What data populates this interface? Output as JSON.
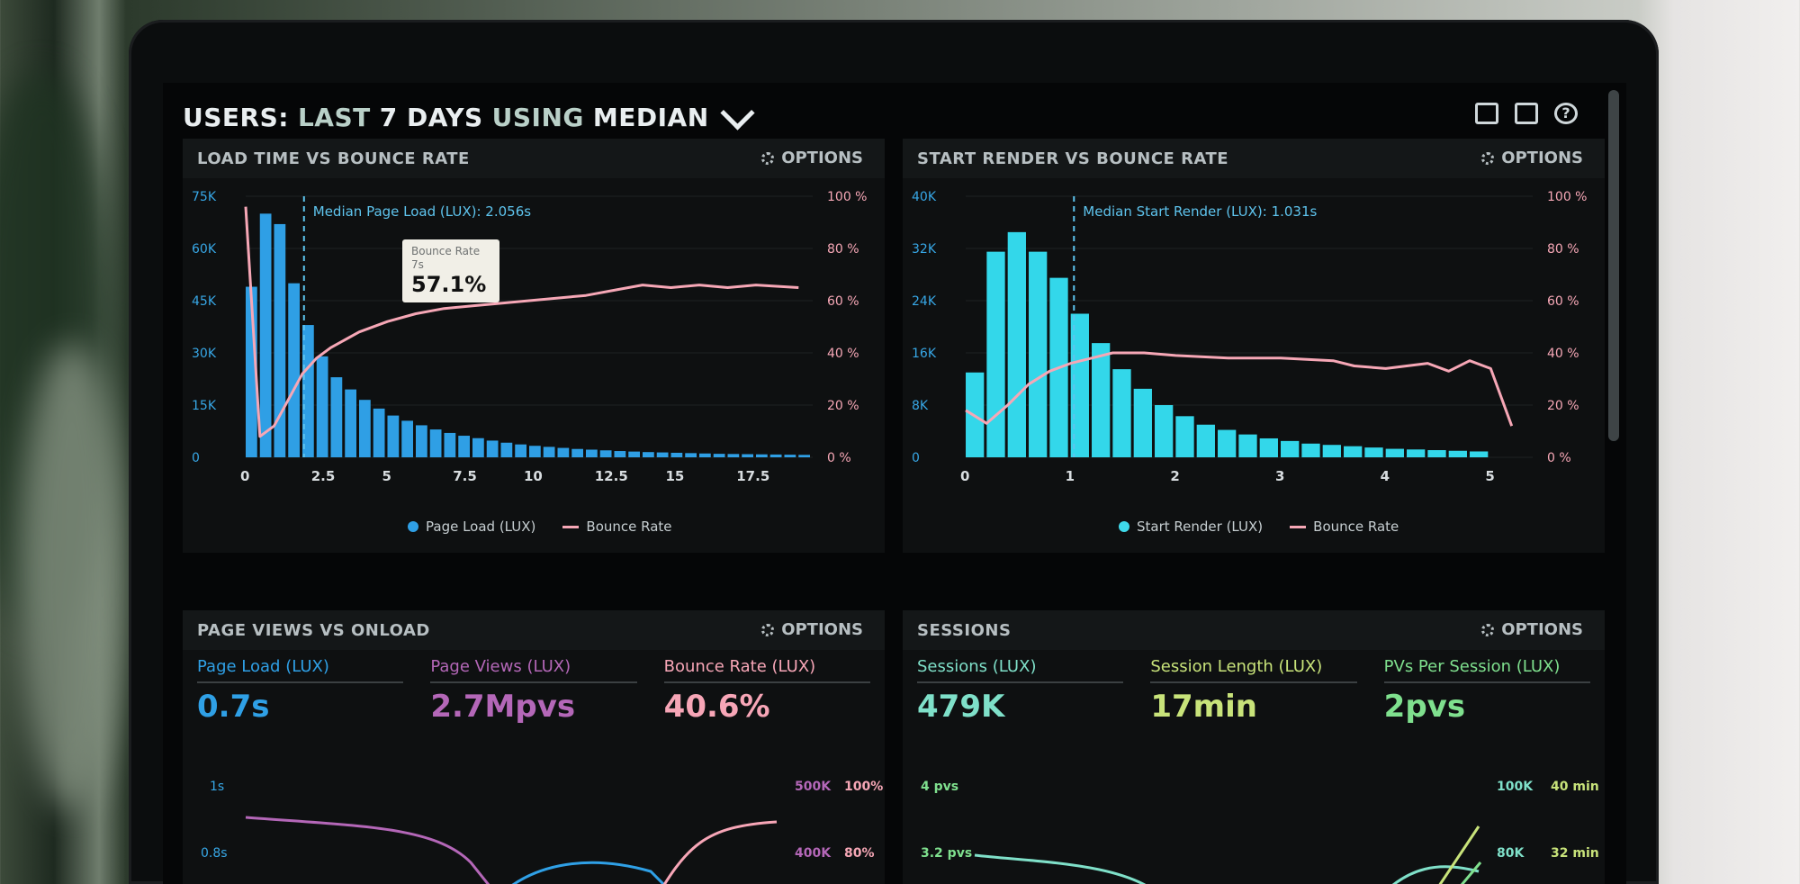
{
  "header": {
    "title_prefix": "USERS:",
    "title_range": "LAST",
    "title_days": "7 DAYS",
    "title_using": "USING",
    "title_stat": "MEDIAN"
  },
  "top_icons": [
    "monitor-icon",
    "share-icon",
    "help-icon"
  ],
  "options_label": "OPTIONS",
  "panels": {
    "load_time": {
      "title": "LOAD TIME VS BOUNCE RATE",
      "median_label": "Median Page Load (LUX): 2.056s",
      "tooltip": {
        "label": "Bounce Rate",
        "sub": "7s",
        "value": "57.1%"
      },
      "legend": [
        "Page Load (LUX)",
        "Bounce Rate"
      ],
      "y_left": [
        "75K",
        "60K",
        "45K",
        "30K",
        "15K",
        "0"
      ],
      "y_right": [
        "100 %",
        "80 %",
        "60 %",
        "40 %",
        "20 %",
        "0 %"
      ],
      "x_ticks": [
        "0",
        "2.5",
        "5",
        "7.5",
        "10",
        "12.5",
        "15",
        "17.5"
      ]
    },
    "start_render": {
      "title": "START RENDER VS BOUNCE RATE",
      "median_label": "Median Start Render (LUX): 1.031s",
      "legend": [
        "Start Render (LUX)",
        "Bounce Rate"
      ],
      "y_left": [
        "40K",
        "32K",
        "24K",
        "16K",
        "8K",
        "0"
      ],
      "y_right": [
        "100 %",
        "80 %",
        "60 %",
        "40 %",
        "20 %",
        "0 %"
      ],
      "x_ticks": [
        "0",
        "1",
        "2",
        "3",
        "4",
        "5"
      ]
    },
    "page_views": {
      "title": "PAGE VIEWS VS ONLOAD",
      "kpis": [
        {
          "label": "Page Load (LUX)",
          "value": "0.7s",
          "color": "#2fa0e6"
        },
        {
          "label": "Page Views (LUX)",
          "value": "2.7Mpvs",
          "color": "#b467b8"
        },
        {
          "label": "Bounce Rate (LUX)",
          "value": "40.6%",
          "color": "#f7a6b7"
        }
      ],
      "y_left": [
        "1s",
        "0.8s"
      ],
      "y_right_a": [
        "500K",
        "400K"
      ],
      "y_right_b": [
        "100%",
        "80%"
      ]
    },
    "sessions": {
      "title": "SESSIONS",
      "kpis": [
        {
          "label": "Sessions (LUX)",
          "value": "479K",
          "color": "#7fe0c9"
        },
        {
          "label": "Session Length (LUX)",
          "value": "17min",
          "color": "#c8e37a"
        },
        {
          "label": "PVs Per Session (LUX)",
          "value": "2pvs",
          "color": "#7fe08e"
        }
      ],
      "y_left": [
        "4 pvs",
        "3.2 pvs"
      ],
      "y_right_a": [
        "100K",
        "80K"
      ],
      "y_right_b": [
        "40 min",
        "32 min"
      ]
    }
  },
  "chart_data": [
    {
      "type": "bar",
      "title": "LOAD TIME VS BOUNCE RATE",
      "x": [
        0,
        0.5,
        1,
        1.5,
        2,
        2.5,
        3,
        3.5,
        4,
        4.5,
        5,
        5.5,
        6,
        6.5,
        7,
        7.5,
        8,
        8.5,
        9,
        9.5,
        10,
        10.5,
        11,
        11.5,
        12,
        12.5,
        13,
        13.5,
        14,
        14.5,
        15,
        15.5,
        16,
        16.5,
        17,
        17.5,
        18,
        18.5,
        19,
        19.5
      ],
      "series": [
        {
          "name": "Page Load (LUX)",
          "axis": "left",
          "values": [
            49000,
            70000,
            67000,
            50000,
            38000,
            29000,
            23000,
            19500,
            16500,
            14000,
            12000,
            10500,
            9200,
            8000,
            7000,
            6200,
            5500,
            4800,
            4200,
            3700,
            3300,
            3000,
            2700,
            2400,
            2200,
            2000,
            1800,
            1650,
            1500,
            1400,
            1300,
            1200,
            1100,
            1000,
            950,
            900,
            850,
            800,
            750,
            700
          ]
        },
        {
          "name": "Bounce Rate",
          "type": "line",
          "axis": "right",
          "x": [
            0,
            0.5,
            1,
            1.5,
            2,
            2.5,
            3,
            4,
            5,
            6,
            7,
            8,
            9,
            10,
            11,
            12,
            13,
            14,
            15,
            16,
            17,
            18,
            19.5
          ],
          "values": [
            96,
            8,
            12,
            22,
            32,
            38,
            42,
            48,
            52,
            55,
            57,
            58,
            59,
            60,
            61,
            62,
            64,
            66,
            65,
            66,
            65,
            66,
            65
          ]
        }
      ],
      "ylim_left": [
        0,
        75000
      ],
      "ylim_right": [
        0,
        100
      ],
      "xlim": [
        0,
        20
      ]
    },
    {
      "type": "bar",
      "title": "START RENDER VS BOUNCE RATE",
      "x": [
        0.1,
        0.3,
        0.5,
        0.7,
        0.9,
        1.1,
        1.3,
        1.5,
        1.7,
        1.9,
        2.1,
        2.3,
        2.5,
        2.7,
        2.9,
        3.1,
        3.3,
        3.5,
        3.7,
        3.9,
        4.1,
        4.3,
        4.5,
        4.7,
        4.9
      ],
      "series": [
        {
          "name": "Start Render (LUX)",
          "axis": "left",
          "values": [
            13000,
            31500,
            34500,
            31500,
            27500,
            22000,
            17500,
            13500,
            10500,
            8000,
            6300,
            5000,
            4200,
            3500,
            2900,
            2500,
            2100,
            1900,
            1700,
            1500,
            1300,
            1200,
            1100,
            1000,
            900
          ]
        },
        {
          "name": "Bounce Rate",
          "type": "line",
          "axis": "right",
          "x": [
            0,
            0.2,
            0.4,
            0.6,
            0.8,
            1,
            1.2,
            1.4,
            1.7,
            2,
            2.5,
            3,
            3.5,
            3.7,
            4,
            4.4,
            4.6,
            4.8,
            5,
            5.2
          ],
          "values": [
            18,
            13,
            20,
            28,
            33,
            36,
            38,
            40,
            40,
            39,
            38,
            38,
            37,
            35,
            34,
            36,
            33,
            37,
            34,
            12
          ]
        }
      ],
      "ylim_left": [
        0,
        40000
      ],
      "ylim_right": [
        0,
        100
      ],
      "xlim": [
        0,
        5.4
      ]
    }
  ]
}
